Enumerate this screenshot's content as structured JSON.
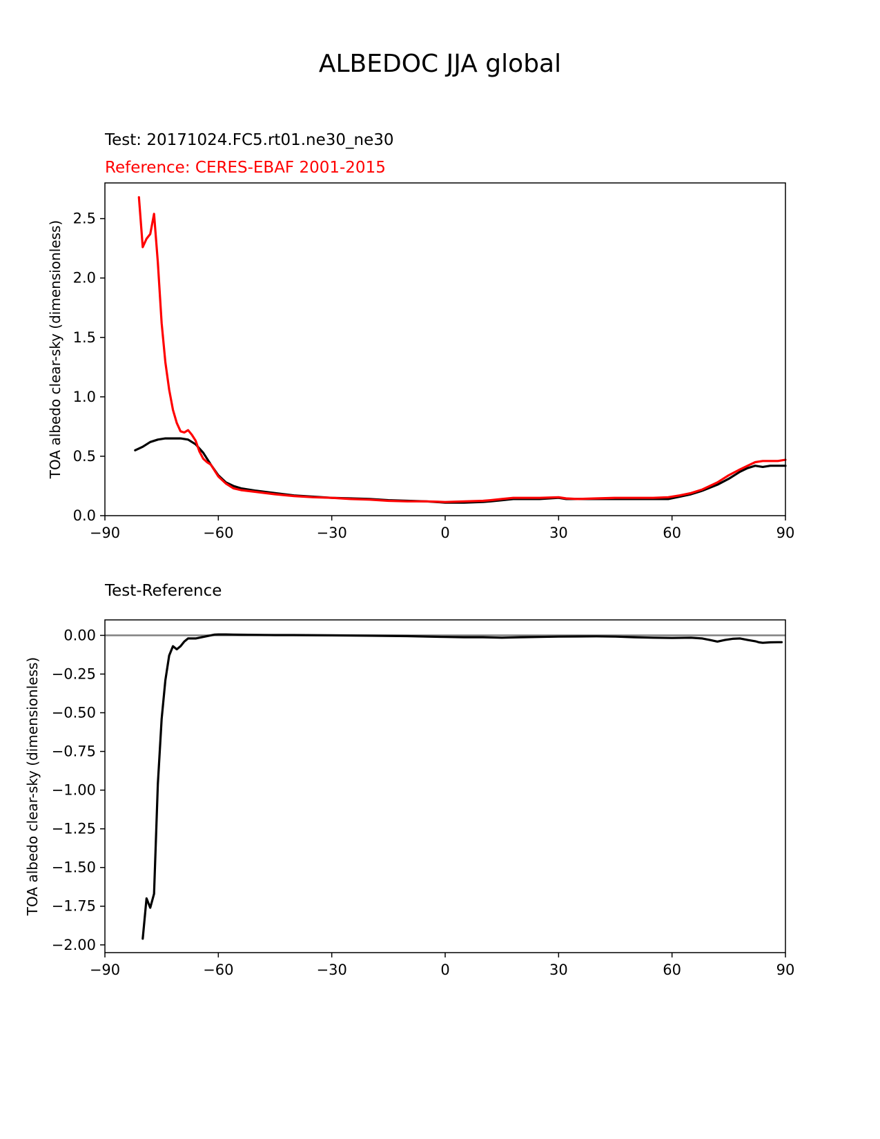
{
  "figure": {
    "title": "ALBEDOC JJA global",
    "test_label": "Test: 20171024.FC5.rt01.ne30_ne30",
    "reference_label": "Reference: CERES-EBAF 2001-2015",
    "diff_title": "Test-Reference"
  },
  "colors": {
    "test": "#000000",
    "reference": "#ff0000",
    "zero_line": "#808080"
  },
  "chart_data": [
    {
      "type": "line",
      "title": "",
      "xlabel": "",
      "ylabel": "TOA albedo clear-sky (dimensionless)",
      "xlim": [
        -90,
        90
      ],
      "ylim": [
        0,
        2.8
      ],
      "xticks": [
        -90,
        -60,
        -30,
        0,
        30,
        60,
        90
      ],
      "xtick_labels": [
        "−90",
        "−60",
        "−30",
        "0",
        "30",
        "60",
        "90"
      ],
      "yticks": [
        0,
        0.5,
        1.0,
        1.5,
        2.0,
        2.5
      ],
      "ytick_labels": [
        "0.0",
        "0.5",
        "1.0",
        "1.5",
        "2.0",
        "2.5"
      ],
      "grid": false,
      "series": [
        {
          "name": "Test: 20171024.FC5.rt01.ne30_ne30",
          "color": "#000000",
          "x": [
            -82,
            -80,
            -78,
            -76,
            -74,
            -72,
            -70,
            -68,
            -66,
            -64,
            -62,
            -60,
            -58,
            -56,
            -54,
            -50,
            -45,
            -40,
            -35,
            -30,
            -25,
            -20,
            -15,
            -10,
            -5,
            0,
            5,
            10,
            12,
            15,
            18,
            20,
            25,
            30,
            32,
            35,
            40,
            45,
            50,
            55,
            59,
            62,
            65,
            68,
            72,
            75,
            78,
            80,
            82,
            84,
            86,
            88,
            90
          ],
          "y": [
            0.55,
            0.58,
            0.62,
            0.64,
            0.65,
            0.65,
            0.65,
            0.64,
            0.6,
            0.53,
            0.43,
            0.34,
            0.28,
            0.25,
            0.23,
            0.21,
            0.19,
            0.17,
            0.16,
            0.15,
            0.145,
            0.14,
            0.13,
            0.125,
            0.12,
            0.11,
            0.11,
            0.115,
            0.12,
            0.13,
            0.14,
            0.14,
            0.14,
            0.15,
            0.14,
            0.14,
            0.14,
            0.14,
            0.14,
            0.14,
            0.14,
            0.16,
            0.18,
            0.21,
            0.26,
            0.31,
            0.37,
            0.4,
            0.42,
            0.41,
            0.42,
            0.42,
            0.42
          ]
        },
        {
          "name": "Reference: CERES-EBAF 2001-2015",
          "color": "#ff0000",
          "x": [
            -81,
            -80,
            -79,
            -78,
            -77,
            -76,
            -75,
            -74,
            -73,
            -72,
            -71,
            -70,
            -69,
            -68,
            -67,
            -66,
            -65,
            -64,
            -63,
            -62,
            -61,
            -60,
            -58,
            -56,
            -54,
            -50,
            -45,
            -40,
            -35,
            -30,
            -25,
            -20,
            -15,
            -10,
            -5,
            0,
            5,
            10,
            12,
            15,
            18,
            20,
            25,
            30,
            32,
            35,
            40,
            45,
            50,
            55,
            59,
            62,
            65,
            68,
            72,
            75,
            78,
            80,
            82,
            84,
            86,
            88,
            90
          ],
          "y": [
            2.68,
            2.26,
            2.33,
            2.37,
            2.54,
            2.13,
            1.62,
            1.29,
            1.06,
            0.89,
            0.78,
            0.71,
            0.7,
            0.72,
            0.68,
            0.63,
            0.54,
            0.48,
            0.45,
            0.43,
            0.38,
            0.33,
            0.27,
            0.23,
            0.215,
            0.2,
            0.18,
            0.165,
            0.155,
            0.15,
            0.14,
            0.135,
            0.125,
            0.12,
            0.12,
            0.115,
            0.12,
            0.125,
            0.13,
            0.14,
            0.15,
            0.15,
            0.15,
            0.155,
            0.145,
            0.14,
            0.145,
            0.15,
            0.15,
            0.15,
            0.155,
            0.17,
            0.19,
            0.22,
            0.28,
            0.34,
            0.39,
            0.42,
            0.45,
            0.46,
            0.46,
            0.46,
            0.47
          ]
        }
      ]
    },
    {
      "type": "line",
      "title": "Test-Reference",
      "xlabel": "",
      "ylabel": "TOA albedo clear-sky (dimensionless)",
      "xlim": [
        -90,
        90
      ],
      "ylim": [
        -2.05,
        0.1
      ],
      "xticks": [
        -90,
        -60,
        -30,
        0,
        30,
        60,
        90
      ],
      "xtick_labels": [
        "−90",
        "−60",
        "−30",
        "0",
        "30",
        "60",
        "90"
      ],
      "yticks": [
        0.0,
        -0.25,
        -0.5,
        -0.75,
        -1.0,
        -1.25,
        -1.5,
        -1.75,
        -2.0
      ],
      "ytick_labels": [
        "0.00",
        "−0.25",
        "−0.50",
        "−0.75",
        "−1.00",
        "−1.25",
        "−1.50",
        "−1.75",
        "−2.00"
      ],
      "grid": false,
      "reference_line": 0,
      "series": [
        {
          "name": "Test-Reference",
          "color": "#000000",
          "x": [
            -80,
            -79,
            -78,
            -77,
            -76,
            -75,
            -74,
            -73,
            -72,
            -71,
            -70,
            -69,
            -68,
            -67,
            -66,
            -65,
            -64,
            -63,
            -62,
            -61,
            -60,
            -58,
            -56,
            -54,
            -50,
            -45,
            -40,
            -30,
            -20,
            -10,
            0,
            5,
            10,
            15,
            20,
            25,
            30,
            35,
            40,
            45,
            50,
            55,
            60,
            65,
            68,
            70,
            72,
            74,
            76,
            78,
            80,
            82,
            83,
            84,
            86,
            88,
            89
          ],
          "y": [
            -1.96,
            -1.7,
            -1.76,
            -1.67,
            -0.96,
            -0.54,
            -0.29,
            -0.13,
            -0.07,
            -0.09,
            -0.07,
            -0.04,
            -0.02,
            -0.02,
            -0.02,
            -0.015,
            -0.01,
            -0.005,
            0.0,
            0.005,
            0.006,
            0.006,
            0.005,
            0.004,
            0.003,
            0.002,
            0.002,
            0.0,
            -0.002,
            -0.005,
            -0.01,
            -0.012,
            -0.012,
            -0.015,
            -0.012,
            -0.01,
            -0.008,
            -0.007,
            -0.006,
            -0.008,
            -0.012,
            -0.015,
            -0.017,
            -0.015,
            -0.02,
            -0.03,
            -0.04,
            -0.03,
            -0.022,
            -0.02,
            -0.03,
            -0.038,
            -0.045,
            -0.048,
            -0.045,
            -0.044,
            -0.044
          ]
        }
      ]
    }
  ]
}
